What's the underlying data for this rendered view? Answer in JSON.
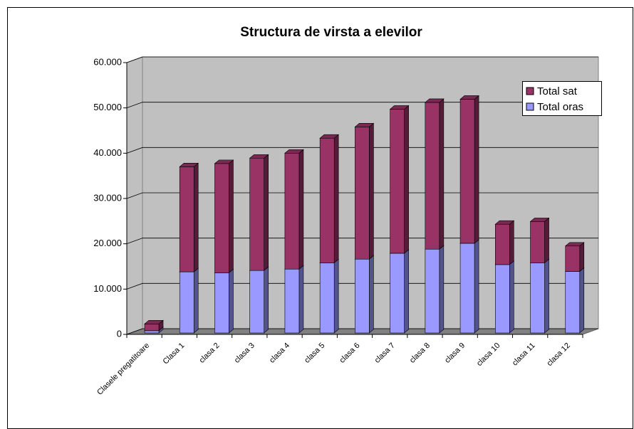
{
  "chart_data": {
    "type": "bar3d_stacked",
    "title": "Structura de virsta a elevilor",
    "categories": [
      "Clasele pregatitoare",
      "Clasa 1",
      "clasa 2",
      "clasa 3",
      "clasa 4",
      "clasa 5",
      "clasa 6",
      "clasa 7",
      "clasa 8",
      "clasa 9",
      "clasa 10",
      "clasa 11",
      "clasa 12"
    ],
    "series": [
      {
        "name": "Total oras",
        "color": "#9999ff",
        "values": [
          500,
          13500,
          13300,
          13800,
          14100,
          15500,
          16300,
          17600,
          18500,
          19800,
          15100,
          15500,
          13600
        ]
      },
      {
        "name": "Total sat",
        "color": "#993366",
        "values": [
          1500,
          23200,
          24100,
          24800,
          25600,
          27500,
          29200,
          31800,
          32400,
          31800,
          8900,
          9100,
          5600
        ]
      }
    ],
    "ylim": [
      0,
      60000
    ],
    "yticks": [
      {
        "value": 0,
        "label": "0"
      },
      {
        "value": 10000,
        "label": "10.000"
      },
      {
        "value": 20000,
        "label": "20.000"
      },
      {
        "value": 30000,
        "label": "30.000"
      },
      {
        "value": 40000,
        "label": "40.000"
      },
      {
        "value": 50000,
        "label": "50.000"
      },
      {
        "value": 60000,
        "label": "60.000"
      }
    ],
    "grid": true,
    "legend": "right"
  }
}
